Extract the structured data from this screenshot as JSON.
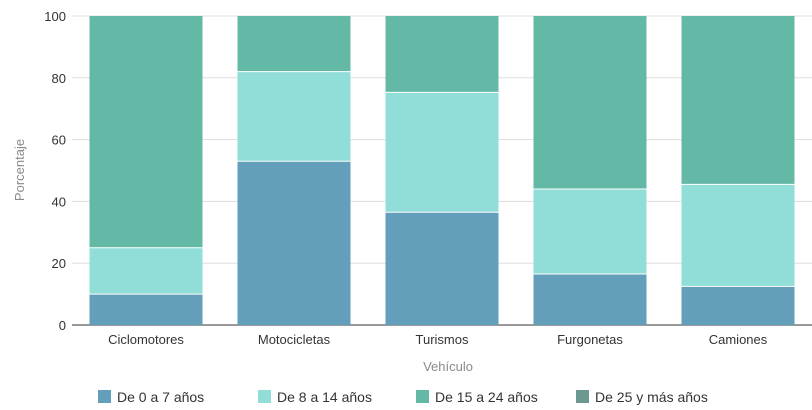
{
  "chart_data": {
    "type": "bar",
    "stacked": true,
    "categories": [
      "Ciclomotores",
      "Motocicletas",
      "Turismos",
      "Furgonetas",
      "Camiones"
    ],
    "series": [
      {
        "name": "De 0 a 7 años",
        "color": "#639fba",
        "values": [
          10,
          53,
          36.5,
          16.5,
          12.5
        ]
      },
      {
        "name": "De 8 a 14 años",
        "color": "#91ddd8",
        "values": [
          15,
          29,
          38.8,
          27.5,
          33
        ]
      },
      {
        "name": "De 15 a 24 años",
        "color": "#64b8a6",
        "values": [
          75,
          18,
          24.7,
          56,
          54.5
        ]
      },
      {
        "name": "De 25 y más años",
        "color": "#6b9991",
        "values": [
          0,
          0,
          0,
          0,
          0
        ]
      }
    ],
    "xlabel": "Vehículo",
    "ylabel": "Porcentaje",
    "ylim": [
      0,
      100
    ],
    "yticks": [
      0,
      20,
      40,
      60,
      80,
      100
    ],
    "grid": true,
    "legend_position": "bottom"
  }
}
